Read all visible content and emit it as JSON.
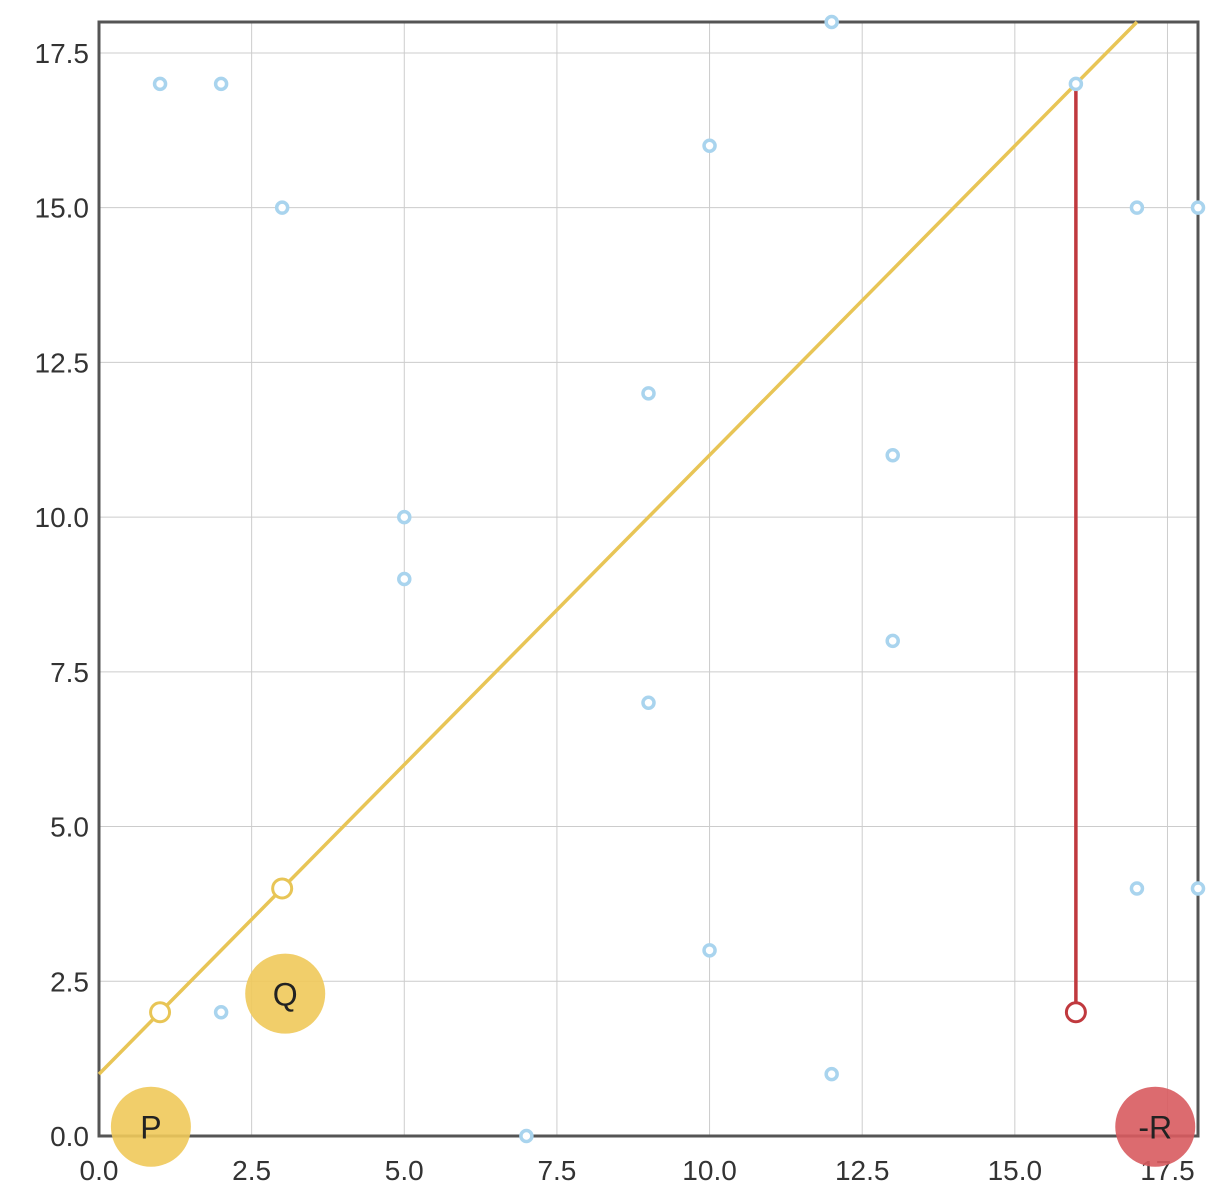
{
  "chart_data": {
    "type": "scatter",
    "title": "",
    "xlabel": "",
    "ylabel": "",
    "xlim": [
      0,
      18
    ],
    "ylim": [
      0,
      18
    ],
    "x_ticks": [
      "0.0",
      "2.5",
      "5.0",
      "7.5",
      "10.0",
      "12.5",
      "15.0",
      "17.5"
    ],
    "y_ticks": [
      "0.0",
      "2.5",
      "5.0",
      "7.5",
      "10.0",
      "12.5",
      "15.0",
      "17.5"
    ],
    "grid": true,
    "points": [
      {
        "x": 1,
        "y": 17
      },
      {
        "x": 2,
        "y": 17
      },
      {
        "x": 3,
        "y": 15
      },
      {
        "x": 12,
        "y": 18
      },
      {
        "x": 10,
        "y": 16
      },
      {
        "x": 16,
        "y": 17
      },
      {
        "x": 17,
        "y": 15
      },
      {
        "x": 18,
        "y": 15
      },
      {
        "x": 9,
        "y": 12
      },
      {
        "x": 13,
        "y": 11
      },
      {
        "x": 5,
        "y": 10
      },
      {
        "x": 5,
        "y": 9
      },
      {
        "x": 13,
        "y": 8
      },
      {
        "x": 9,
        "y": 7
      },
      {
        "x": 17,
        "y": 4
      },
      {
        "x": 18,
        "y": 4
      },
      {
        "x": 10,
        "y": 3
      },
      {
        "x": 2,
        "y": 2
      },
      {
        "x": 12,
        "y": 1
      },
      {
        "x": 7,
        "y": 0
      }
    ],
    "line": {
      "slope": 1,
      "intercept": 1,
      "x_start": 0,
      "x_end": 17
    },
    "line_points": [
      {
        "x": 1,
        "y": 2
      },
      {
        "x": 3,
        "y": 4
      }
    ],
    "residual": {
      "x": 16,
      "y_from": 17,
      "y_to": 2
    },
    "badges": [
      {
        "label": "P",
        "x": 0.85,
        "y": 0.15,
        "color": "#f0c95a"
      },
      {
        "label": "Q",
        "x": 3.05,
        "y": 2.3,
        "color": "#f0c95a"
      },
      {
        "label": "-R",
        "x": 17.3,
        "y": 0.15,
        "color": "#d85b5f"
      }
    ],
    "colors": {
      "points": "#a9d4ee",
      "line": "#e8c556",
      "residual": "#c0393e",
      "grid": "#cccccc",
      "axes": "#555555"
    }
  }
}
